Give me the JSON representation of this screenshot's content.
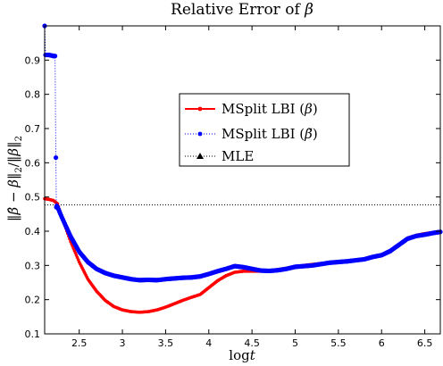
{
  "chart_data": {
    "type": "line",
    "title": "Relative Error of β",
    "xlabel": "log t",
    "ylabel": "||β̂ − β||₂ / ||β||₂",
    "xlim": [
      2.1,
      6.68
    ],
    "ylim": [
      0.1,
      1.0
    ],
    "xticks": [
      2.5,
      3,
      3.5,
      4,
      4.5,
      5,
      5.5,
      6,
      6.5
    ],
    "yticks": [
      0.1,
      0.2,
      0.3,
      0.4,
      0.5,
      0.6,
      0.7,
      0.8,
      0.9
    ],
    "legend_position": "center-right",
    "grid": false,
    "series": [
      {
        "name": "MSplit LBI (β)",
        "color": "#ff0000",
        "style": "solid",
        "marker": "dot",
        "x": [
          2.1,
          2.15,
          2.2,
          2.25,
          2.3,
          2.4,
          2.5,
          2.6,
          2.7,
          2.8,
          2.9,
          3.0,
          3.1,
          3.2,
          3.3,
          3.4,
          3.5,
          3.6,
          3.7,
          3.8,
          3.9,
          4.0,
          4.1,
          4.2,
          4.3,
          4.4,
          4.5,
          4.6,
          4.7,
          4.8,
          4.9,
          5.0,
          5.1,
          5.2,
          5.3,
          5.4,
          5.5,
          5.6,
          5.7,
          5.8,
          5.9,
          6.0,
          6.1,
          6.2,
          6.3,
          6.4,
          6.5,
          6.6,
          6.68
        ],
        "values": [
          0.495,
          0.493,
          0.49,
          0.48,
          0.44,
          0.37,
          0.31,
          0.26,
          0.225,
          0.198,
          0.18,
          0.17,
          0.165,
          0.163,
          0.165,
          0.17,
          0.178,
          0.188,
          0.198,
          0.207,
          0.215,
          0.235,
          0.255,
          0.27,
          0.28,
          0.283,
          0.283,
          0.283,
          0.284,
          0.288,
          0.292,
          0.296,
          0.3,
          0.303,
          0.306,
          0.308,
          0.31,
          0.312,
          0.315,
          0.318,
          0.325,
          0.33,
          0.34,
          0.36,
          0.38,
          0.388,
          0.393,
          0.396,
          0.398
        ]
      },
      {
        "name": "MSplit LBI (β̃)",
        "color": "#0000ff",
        "style": "dotted",
        "marker": "dot",
        "x": [
          2.1,
          2.11,
          2.13,
          2.15,
          2.17,
          2.19,
          2.2,
          2.22,
          2.23,
          2.235,
          2.24,
          2.25,
          2.3,
          2.4,
          2.5,
          2.6,
          2.7,
          2.8,
          2.9,
          3.0,
          3.1,
          3.2,
          3.3,
          3.4,
          3.5,
          3.6,
          3.7,
          3.8,
          3.9,
          4.0,
          4.1,
          4.2,
          4.3,
          4.4,
          4.5,
          4.6,
          4.7,
          4.8,
          4.9,
          5.0,
          5.1,
          5.2,
          5.3,
          5.4,
          5.5,
          5.6,
          5.7,
          5.8,
          5.9,
          6.0,
          6.1,
          6.2,
          6.3,
          6.4,
          6.5,
          6.6,
          6.68
        ],
        "values": [
          1.0,
          0.915,
          0.915,
          0.915,
          0.914,
          0.913,
          0.912,
          0.912,
          0.615,
          0.47,
          0.474,
          0.47,
          0.44,
          0.385,
          0.34,
          0.31,
          0.29,
          0.278,
          0.27,
          0.265,
          0.26,
          0.257,
          0.258,
          0.257,
          0.26,
          0.262,
          0.264,
          0.265,
          0.268,
          0.275,
          0.283,
          0.29,
          0.298,
          0.295,
          0.29,
          0.285,
          0.284,
          0.286,
          0.29,
          0.296,
          0.298,
          0.3,
          0.304,
          0.308,
          0.31,
          0.312,
          0.315,
          0.318,
          0.325,
          0.33,
          0.342,
          0.36,
          0.378,
          0.386,
          0.39,
          0.395,
          0.398
        ]
      },
      {
        "name": "MLE",
        "color": "#000000",
        "style": "dotted",
        "marker": "triangle",
        "x": [
          2.1,
          6.68
        ],
        "values": [
          0.477,
          0.477
        ]
      }
    ]
  }
}
